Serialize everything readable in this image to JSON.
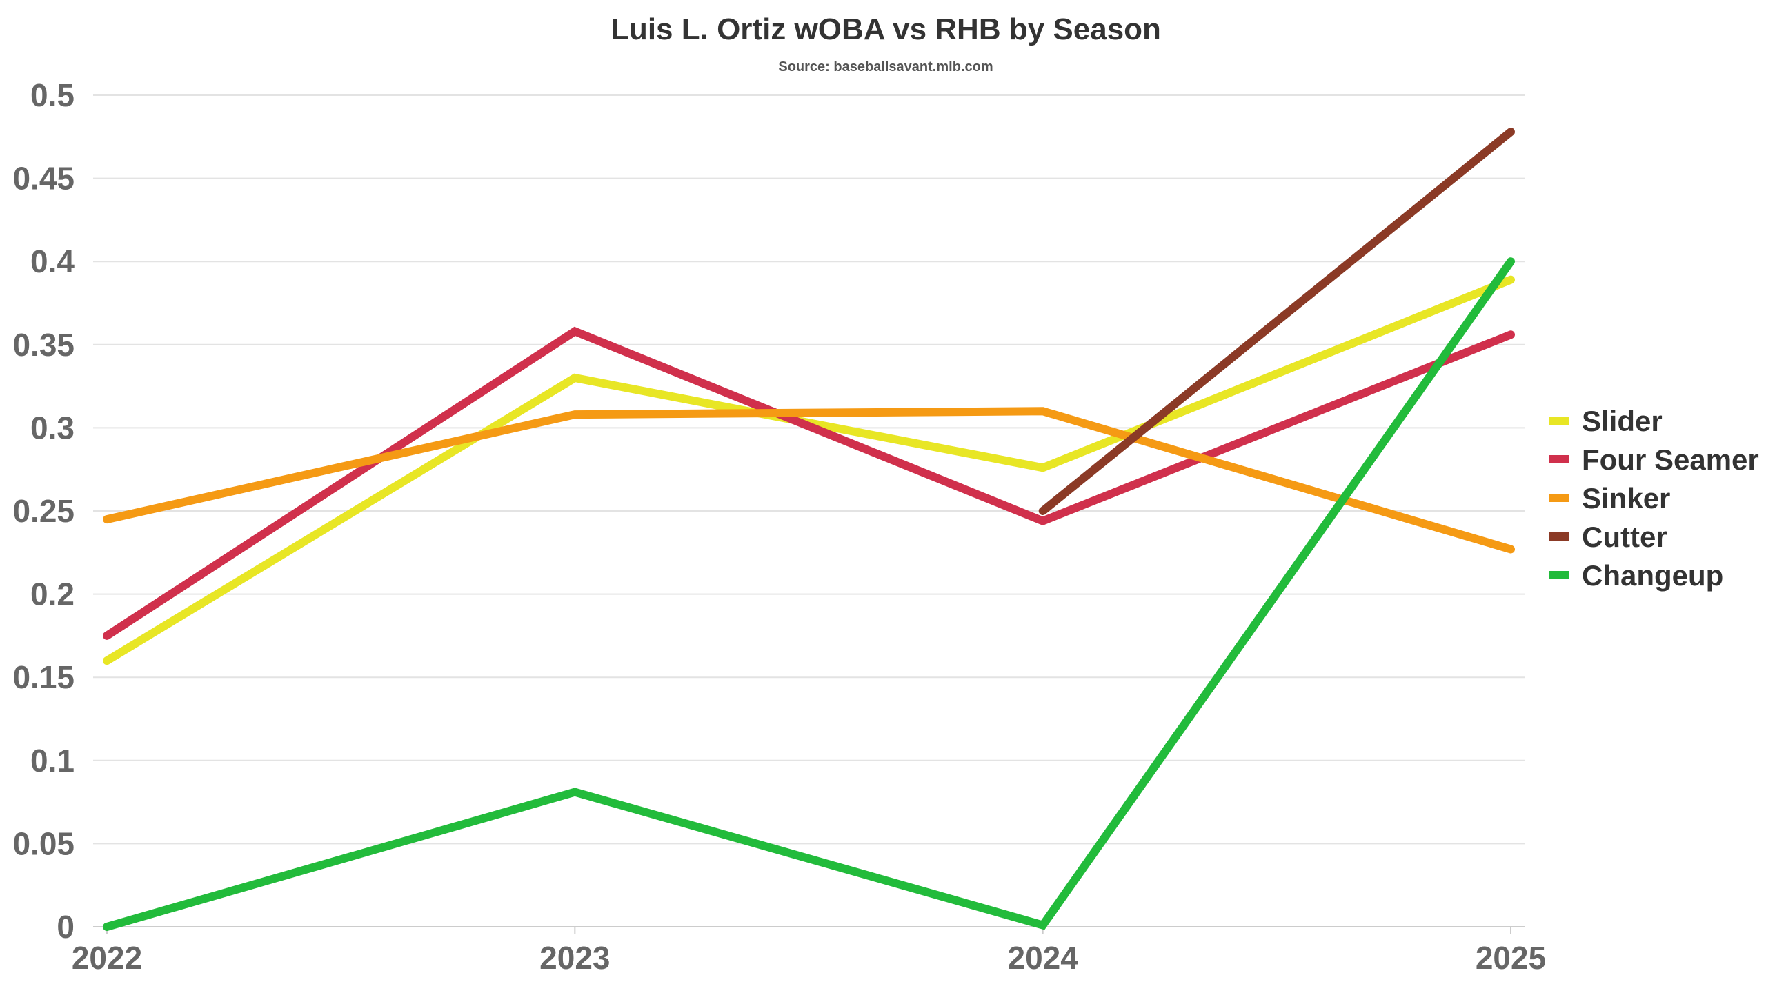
{
  "chart": {
    "title": "Luis L. Ortiz wOBA vs RHB by Season",
    "subtitle": "Source: baseballsavant.mlb.com"
  },
  "chart_data": {
    "type": "line",
    "title": "Luis L. Ortiz wOBA vs RHB by Season",
    "subtitle": "Source: baseballsavant.mlb.com",
    "xlabel": "",
    "ylabel": "",
    "categories": [
      "2022",
      "2023",
      "2024",
      "2025"
    ],
    "ylim": [
      0,
      0.5
    ],
    "yticks": [
      "0",
      "0.05",
      "0.1",
      "0.15",
      "0.2",
      "0.25",
      "0.3",
      "0.35",
      "0.4",
      "0.45",
      "0.5"
    ],
    "grid": true,
    "legend_position": "right",
    "series": [
      {
        "name": "Slider",
        "color": "#e8e625",
        "values": [
          0.16,
          0.33,
          0.276,
          0.389
        ]
      },
      {
        "name": "Four Seamer",
        "color": "#d0304c",
        "values": [
          0.175,
          0.358,
          0.244,
          0.356
        ]
      },
      {
        "name": "Sinker",
        "color": "#f59a14",
        "values": [
          0.245,
          0.308,
          0.31,
          0.227
        ]
      },
      {
        "name": "Cutter",
        "color": "#8b3a26",
        "values": [
          null,
          null,
          0.25,
          0.478
        ]
      },
      {
        "name": "Changeup",
        "color": "#22bb3b",
        "values": [
          0.0,
          0.081,
          0.001,
          0.4
        ]
      }
    ]
  }
}
